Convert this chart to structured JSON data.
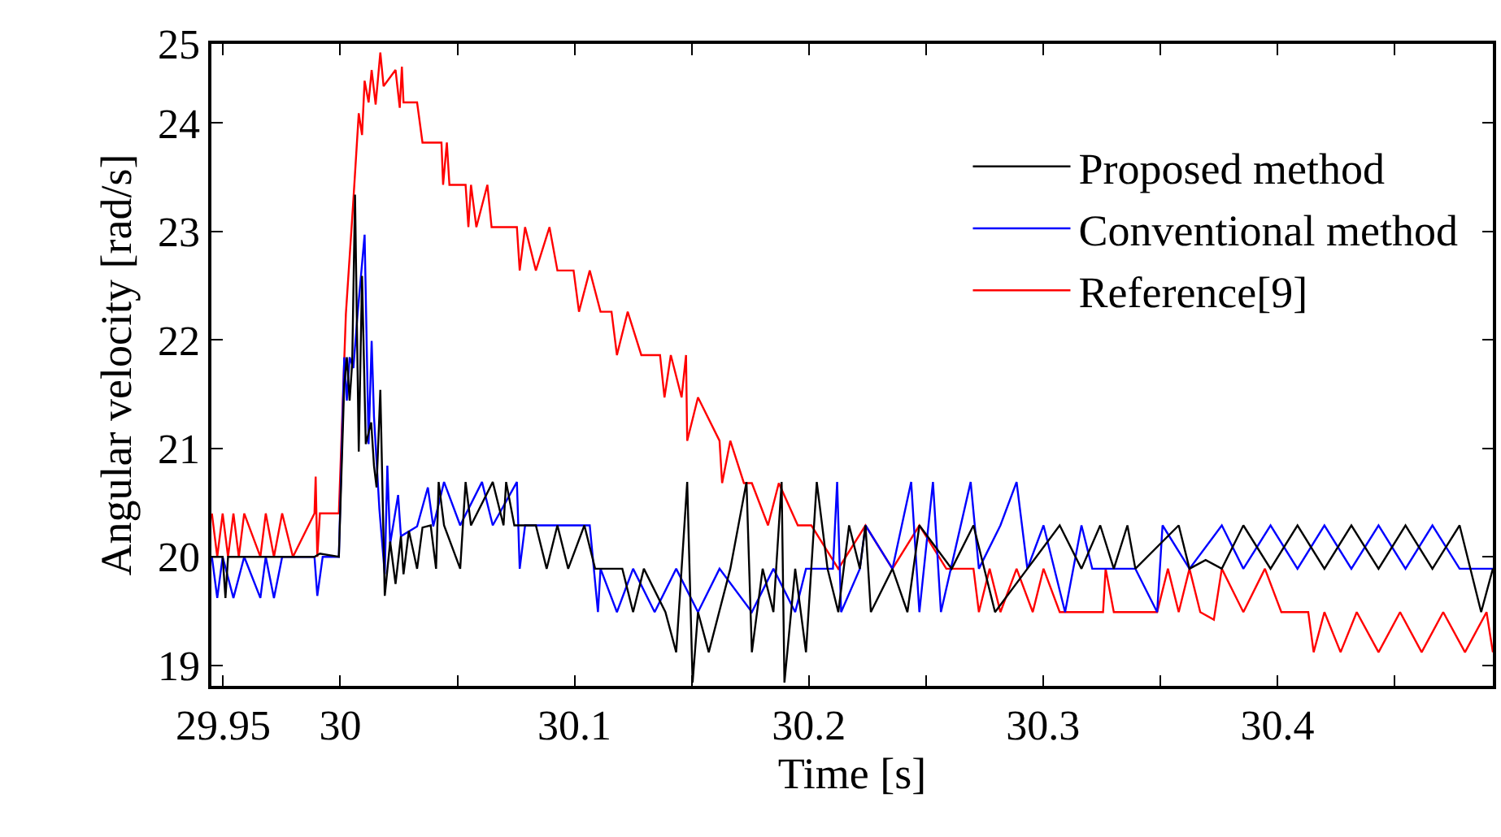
{
  "chart_data": {
    "type": "line",
    "xlabel": "Time [s]",
    "ylabel": "Angular velocity [rad/s]",
    "xlim": [
      29.945,
      30.492
    ],
    "ylim": [
      18.81,
      24.73
    ],
    "xticks": [
      29.95,
      30,
      {
        "value": 30.05,
        "label": null
      },
      30.1,
      {
        "value": 30.15,
        "label": null
      },
      30.2,
      {
        "value": 30.25,
        "label": null
      },
      30.3,
      {
        "value": 30.35,
        "label": null
      },
      30.4,
      {
        "value": 30.45,
        "label": null
      }
    ],
    "yticks": [
      19,
      20,
      21,
      22,
      23,
      24,
      {
        "value": 24.73,
        "label": "25"
      }
    ],
    "legend": "top right",
    "marker": "none",
    "line_style": "solid",
    "series": [
      {
        "name": "Reference[9]",
        "color": "#ff0000",
        "x": [
          29.9452,
          29.9475,
          29.9498,
          29.9521,
          29.9544,
          29.9567,
          29.959,
          29.9659,
          29.9682,
          29.9717,
          29.9752,
          29.9798,
          29.989,
          29.9895,
          29.9902,
          29.9913,
          29.9994,
          30.0024,
          30.0056,
          30.0079,
          30.0093,
          30.0104,
          30.0121,
          30.0134,
          30.0151,
          30.0171,
          30.0185,
          30.0236,
          30.0254,
          30.0263,
          30.027,
          30.0328,
          30.0351,
          30.0432,
          30.0439,
          30.0455,
          30.0466,
          30.0535,
          30.0547,
          30.0558,
          30.0581,
          30.0628,
          30.0646,
          30.0754,
          30.0766,
          30.0789,
          30.0835,
          30.0893,
          30.0927,
          30.0996,
          30.1019,
          30.1065,
          30.1111,
          30.1158,
          30.1181,
          30.1227,
          30.1285,
          30.1365,
          30.1384,
          30.1411,
          30.1457,
          30.1476,
          30.1481,
          30.1527,
          30.1619,
          30.163,
          30.1665,
          30.1723,
          30.1757,
          30.1826,
          30.1872,
          30.1953,
          30.2011,
          30.2126,
          30.2242,
          30.2357,
          30.2472,
          30.2587,
          30.2703,
          30.2726,
          30.2772,
          30.2818,
          30.2887,
          30.2956,
          30.3002,
          30.3071,
          30.3256,
          30.3267,
          30.3302,
          30.3487,
          30.3533,
          30.3579,
          30.3625,
          30.3671,
          30.3729,
          30.3763,
          30.3855,
          30.3947,
          30.4017,
          30.4132,
          30.4155,
          30.4201,
          30.427,
          30.4339,
          30.4432,
          30.4524,
          30.4616,
          30.4708,
          30.4801,
          30.4893,
          30.492
        ],
        "values": [
          20.4,
          20.0,
          20.4,
          20.0,
          20.4,
          20.0,
          20.4,
          20.0,
          20.4,
          20.0,
          20.4,
          20.0,
          20.4,
          20.74,
          20.0,
          20.4,
          20.4,
          22.24,
          23.29,
          24.09,
          23.89,
          24.39,
          24.19,
          24.49,
          24.17,
          24.65,
          24.34,
          24.49,
          24.14,
          24.52,
          24.19,
          24.19,
          23.82,
          23.82,
          23.43,
          23.82,
          23.43,
          23.43,
          23.04,
          23.43,
          23.04,
          23.43,
          23.04,
          23.04,
          22.64,
          23.04,
          22.64,
          23.04,
          22.64,
          22.64,
          22.26,
          22.64,
          22.26,
          22.26,
          21.86,
          22.26,
          21.86,
          21.86,
          21.47,
          21.86,
          21.47,
          21.86,
          21.07,
          21.47,
          21.07,
          20.68,
          21.07,
          20.68,
          20.68,
          20.29,
          20.68,
          20.29,
          20.29,
          19.89,
          20.29,
          19.89,
          20.29,
          19.89,
          19.89,
          19.49,
          19.89,
          19.49,
          19.89,
          19.49,
          19.89,
          19.49,
          19.49,
          19.89,
          19.49,
          19.49,
          19.89,
          19.49,
          19.89,
          19.49,
          19.42,
          19.89,
          19.49,
          19.89,
          19.49,
          19.49,
          19.12,
          19.49,
          19.12,
          19.49,
          19.12,
          19.49,
          19.12,
          19.49,
          19.12,
          19.49,
          19.12
        ]
      },
      {
        "name": "Conventional method",
        "color": "#0000ff",
        "x": [
          29.9452,
          29.9475,
          29.9498,
          29.9544,
          29.959,
          29.9659,
          29.9682,
          29.9717,
          29.9752,
          29.989,
          29.9902,
          29.9925,
          29.9994,
          30.0017,
          30.0028,
          30.004,
          30.0056,
          30.0074,
          30.0104,
          30.0121,
          30.0134,
          30.0144,
          30.0167,
          30.019,
          30.0201,
          30.0213,
          30.0247,
          30.0259,
          30.0328,
          30.0374,
          30.0397,
          30.0443,
          30.0512,
          30.0605,
          30.0651,
          30.0754,
          30.0766,
          30.0789,
          30.1065,
          30.11,
          30.1111,
          30.1181,
          30.125,
          30.1342,
          30.1434,
          30.1527,
          30.1619,
          30.1757,
          30.1849,
          30.1942,
          30.1988,
          30.2103,
          30.2121,
          30.2138,
          30.2218,
          30.2242,
          30.2357,
          30.2437,
          30.2472,
          30.253,
          30.2564,
          30.2691,
          30.2726,
          30.2818,
          30.2887,
          30.2933,
          30.3002,
          30.3094,
          30.3164,
          30.321,
          30.3394,
          30.3487,
          30.351,
          30.3625,
          30.3729,
          30.3763,
          30.3855,
          30.3971,
          30.4086,
          30.4201,
          30.4316,
          30.4432,
          30.4547,
          30.4662,
          30.4778,
          30.492
        ],
        "values": [
          20.0,
          19.62,
          20.0,
          19.62,
          20.0,
          19.62,
          20.0,
          19.62,
          20.0,
          20.0,
          19.64,
          20.0,
          20.0,
          21.84,
          21.44,
          21.84,
          21.74,
          22.24,
          22.97,
          21.04,
          21.99,
          21.29,
          20.44,
          19.84,
          20.84,
          20.12,
          20.57,
          20.19,
          20.28,
          20.64,
          20.28,
          20.69,
          20.29,
          20.69,
          20.29,
          20.69,
          19.89,
          20.29,
          20.29,
          19.49,
          19.89,
          19.49,
          19.89,
          19.49,
          19.89,
          19.49,
          19.89,
          19.49,
          19.89,
          19.49,
          19.89,
          19.89,
          20.69,
          19.49,
          19.89,
          20.29,
          19.89,
          20.69,
          19.49,
          20.69,
          19.49,
          20.69,
          19.89,
          20.29,
          20.69,
          19.89,
          20.29,
          19.49,
          20.29,
          19.89,
          19.89,
          19.49,
          20.29,
          19.89,
          20.19,
          20.29,
          19.89,
          20.29,
          19.89,
          20.29,
          19.89,
          20.29,
          19.89,
          20.29,
          19.89,
          19.89
        ]
      },
      {
        "name": "Proposed method",
        "color": "#000000",
        "x": [
          29.9452,
          29.9498,
          29.951,
          29.9521,
          29.989,
          29.9913,
          29.9994,
          30.0017,
          30.0028,
          30.004,
          30.0051,
          30.0063,
          30.0079,
          30.0093,
          30.0109,
          30.0132,
          30.0144,
          30.0155,
          30.0171,
          30.019,
          30.0213,
          30.0236,
          30.0259,
          30.027,
          30.0293,
          30.0328,
          30.0351,
          30.0386,
          30.0409,
          30.042,
          30.0443,
          30.0512,
          30.0535,
          30.0558,
          30.0651,
          30.0697,
          30.0708,
          30.0743,
          30.0835,
          30.0881,
          30.0927,
          30.0973,
          30.1042,
          30.1088,
          30.1204,
          30.125,
          30.1296,
          30.1388,
          30.1434,
          30.1481,
          30.1504,
          30.1527,
          30.1573,
          30.1665,
          30.1734,
          30.1757,
          30.1803,
          30.1849,
          30.1884,
          30.1896,
          30.1942,
          30.1988,
          30.2034,
          30.208,
          30.2126,
          30.2172,
          30.2218,
          30.2242,
          30.2265,
          30.2357,
          30.2421,
          30.2472,
          30.261,
          30.2703,
          30.2795,
          30.2933,
          30.3071,
          30.3164,
          30.3244,
          30.3302,
          30.336,
          30.3394,
          30.3579,
          30.3625,
          30.3694,
          30.3763,
          30.3855,
          30.3971,
          30.4086,
          30.4201,
          30.4316,
          30.4432,
          30.4547,
          30.4662,
          30.4778,
          30.487,
          30.492
        ],
        "values": [
          20.0,
          20.0,
          19.62,
          20.0,
          20.0,
          20.03,
          20.0,
          21.59,
          21.84,
          21.44,
          21.79,
          23.34,
          20.97,
          22.59,
          21.04,
          21.24,
          20.84,
          20.64,
          21.54,
          19.64,
          20.14,
          19.75,
          20.19,
          19.84,
          20.24,
          19.89,
          20.27,
          20.29,
          19.89,
          20.69,
          20.29,
          19.89,
          20.69,
          20.29,
          20.69,
          20.29,
          20.69,
          20.29,
          20.29,
          19.89,
          20.29,
          19.89,
          20.29,
          19.89,
          19.89,
          19.49,
          19.89,
          19.49,
          19.12,
          20.69,
          18.84,
          19.49,
          19.12,
          19.89,
          20.69,
          19.12,
          19.89,
          19.49,
          20.69,
          18.84,
          19.89,
          19.12,
          20.69,
          19.89,
          19.49,
          20.29,
          19.89,
          20.29,
          19.49,
          19.89,
          19.49,
          20.29,
          19.89,
          20.29,
          19.49,
          19.89,
          20.29,
          19.89,
          20.29,
          19.89,
          20.29,
          19.89,
          20.29,
          19.89,
          19.97,
          19.89,
          20.29,
          19.89,
          20.29,
          19.89,
          20.29,
          19.89,
          20.29,
          19.89,
          20.29,
          19.49,
          19.89
        ]
      }
    ]
  }
}
